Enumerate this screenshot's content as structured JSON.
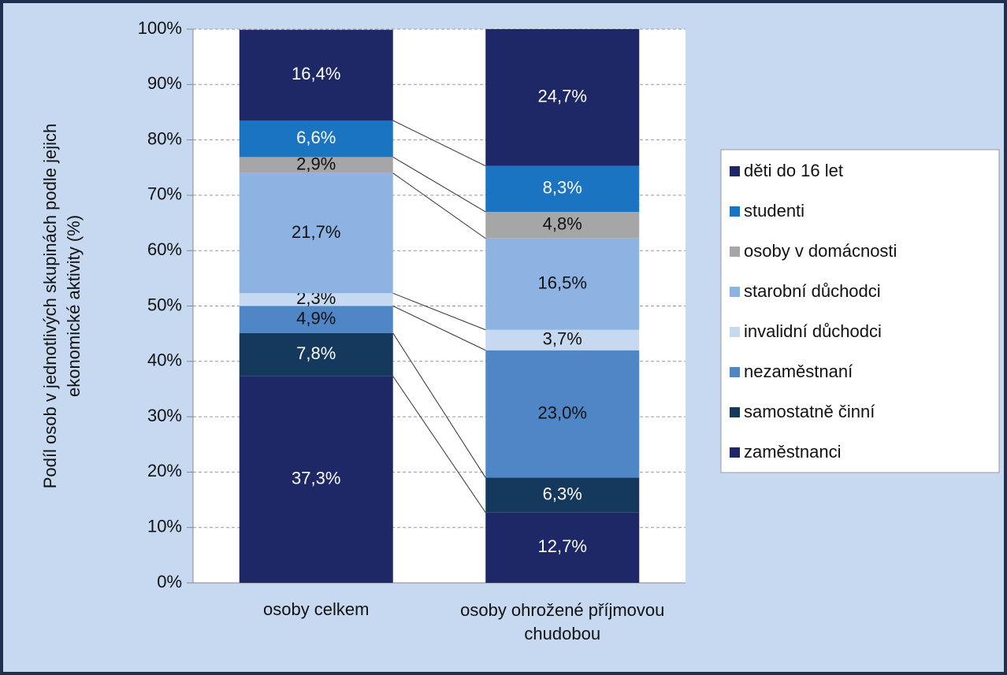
{
  "chart_data": {
    "type": "stacked_bar_100",
    "y_label": [
      "Podíl osob v jednotlivých skupinách podle jejich",
      "ekonomické aktivity (%)"
    ],
    "categories": [
      "osoby celkem",
      "osoby ohrožené příjmovou chudobou"
    ],
    "ylim": [
      0,
      100
    ],
    "yticks": [
      {
        "value": 0,
        "label": "0%"
      },
      {
        "value": 10,
        "label": "10%"
      },
      {
        "value": 20,
        "label": "20%"
      },
      {
        "value": 30,
        "label": "30%"
      },
      {
        "value": 40,
        "label": "40%"
      },
      {
        "value": 50,
        "label": "50%"
      },
      {
        "value": 60,
        "label": "60%"
      },
      {
        "value": 70,
        "label": "70%"
      },
      {
        "value": 80,
        "label": "80%"
      },
      {
        "value": 90,
        "label": "90%"
      },
      {
        "value": 100,
        "label": "100%"
      }
    ],
    "grid": true,
    "legend": "right",
    "series": [
      {
        "name": "zaměstnanci",
        "color": "#1f2866",
        "values": [
          37.3,
          12.7
        ],
        "value_labels": [
          "37,3%",
          "12,7%"
        ]
      },
      {
        "name": "samostatně činní",
        "color": "#15395c",
        "values": [
          7.8,
          6.3
        ],
        "value_labels": [
          "7,8%",
          "6,3%"
        ]
      },
      {
        "name": "nezaměstnaní",
        "color": "#4f86c6",
        "values": [
          4.9,
          23.0
        ],
        "value_labels": [
          "4,9%",
          "23,0%"
        ]
      },
      {
        "name": "invalidní důchodci",
        "color": "#c6d9f0",
        "values": [
          2.3,
          3.7
        ],
        "value_labels": [
          "2,3%",
          "3,7%"
        ]
      },
      {
        "name": "starobní důchodci",
        "color": "#8db3e2",
        "values": [
          21.7,
          16.5
        ],
        "value_labels": [
          "21,7%",
          "16,5%"
        ]
      },
      {
        "name": "osoby v domácnosti",
        "color": "#a6a6a6",
        "values": [
          2.9,
          4.8
        ],
        "value_labels": [
          "2,9%",
          "4,8%"
        ]
      },
      {
        "name": "studenti",
        "color": "#1a74c1",
        "values": [
          6.6,
          8.3
        ],
        "value_labels": [
          "6,6%",
          "8,3%"
        ]
      },
      {
        "name": "děti do 16 let",
        "color": "#1f2866",
        "values": [
          16.4,
          24.7
        ],
        "value_labels": [
          "16,4%",
          "24,7%"
        ]
      }
    ]
  }
}
